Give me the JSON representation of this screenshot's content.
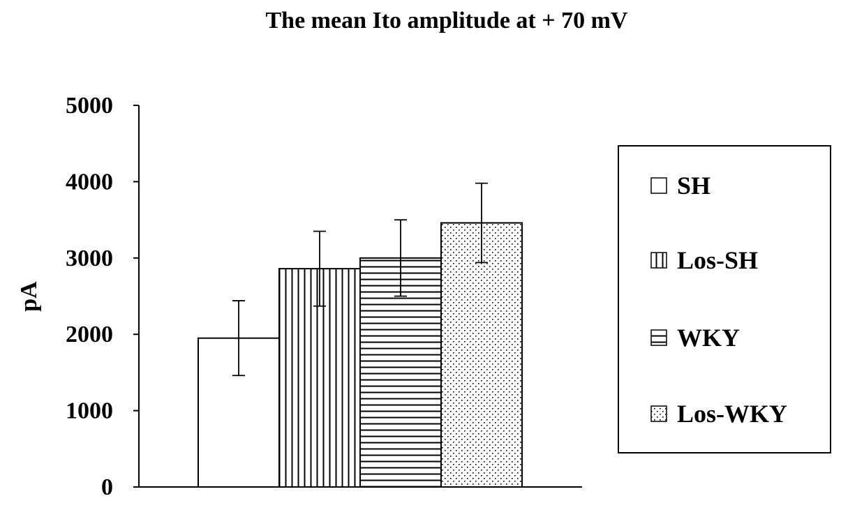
{
  "chart_data": {
    "type": "bar",
    "title": "The mean Ito amplitude at + 70 mV",
    "xlabel": "",
    "ylabel": "pA",
    "ylim": [
      0,
      5000
    ],
    "yticks": [
      0,
      1000,
      2000,
      3000,
      4000,
      5000
    ],
    "grid": false,
    "legend_position": "right",
    "series": [
      {
        "name": "SH",
        "value": 1950,
        "error": 490,
        "fill": "blank"
      },
      {
        "name": "Los-SH",
        "value": 2860,
        "error": 490,
        "fill": "vertical-lines"
      },
      {
        "name": "WKY",
        "value": 3000,
        "error": 500,
        "fill": "horizontal-lines"
      },
      {
        "name": "Los-WKY",
        "value": 3460,
        "error": 520,
        "fill": "dots"
      }
    ]
  }
}
